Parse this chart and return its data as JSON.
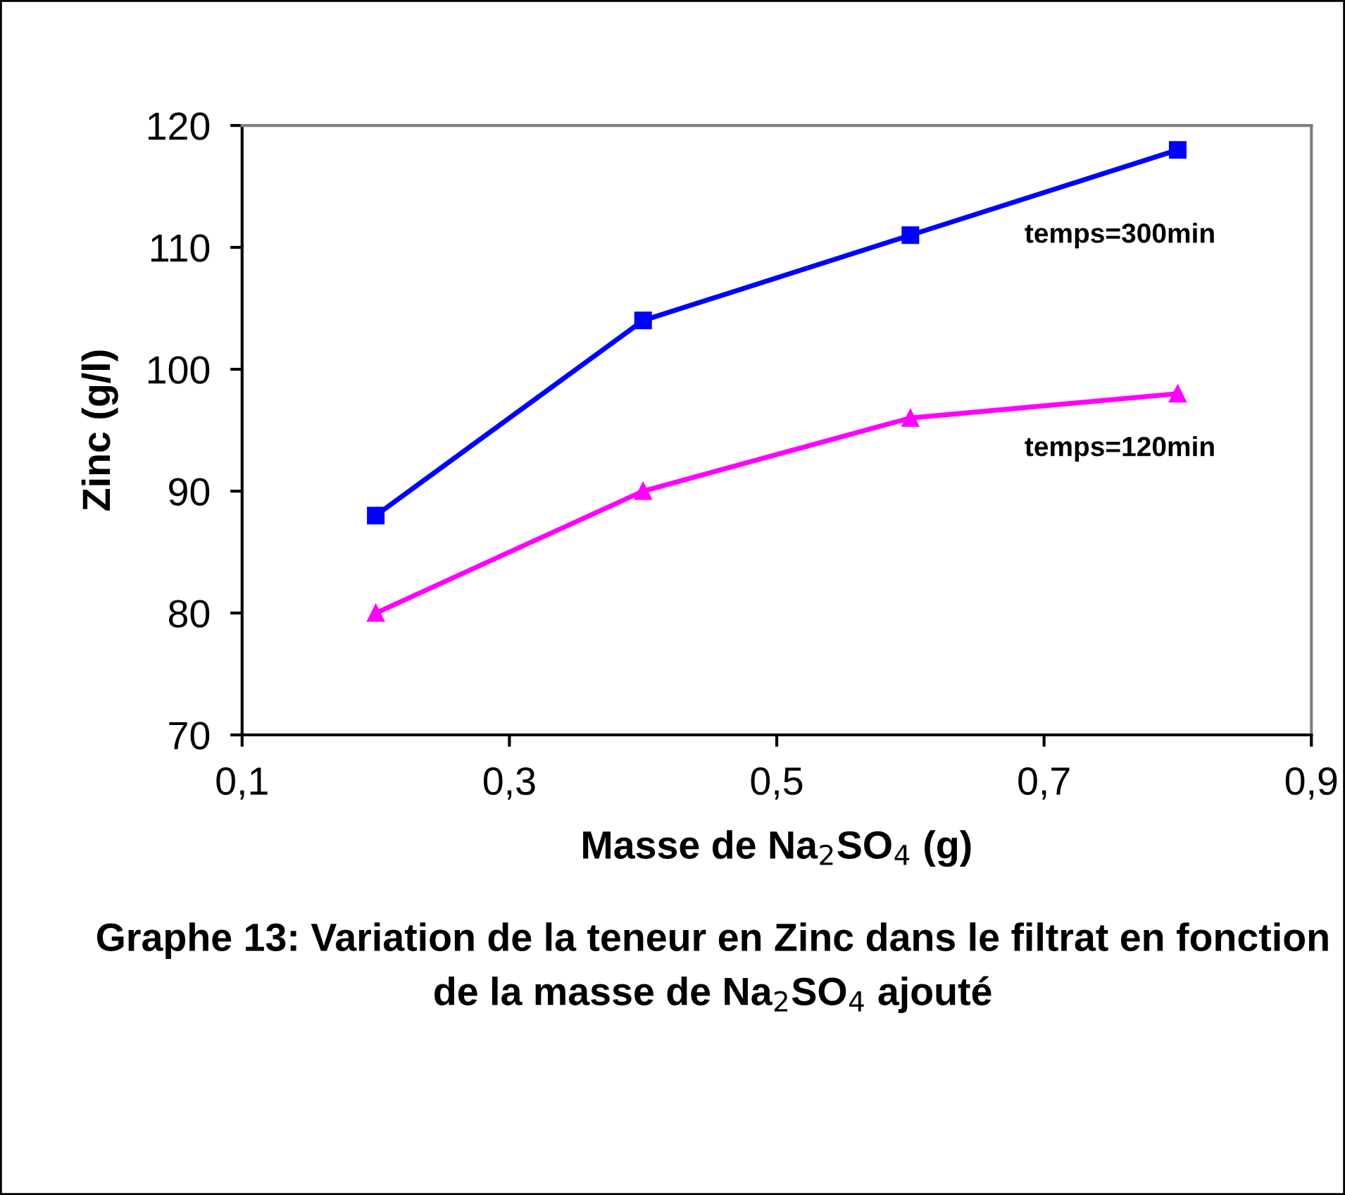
{
  "chart_data": {
    "type": "line",
    "xlabel": "Masse de Na$_{2}$SO$_{4}$ (g)",
    "ylabel": "Zinc (g/l)",
    "annotations": [
      "Graphe 13: Variation de la teneur en Zinc dans le filtrat en fonction de la masse de Na$_{2}$SO$_{4}$ ajouté"
    ],
    "x": [
      0.2,
      0.4,
      0.6,
      0.8
    ],
    "series": [
      {
        "name": "temps=300min",
        "color": "#0000ff",
        "marker": "square",
        "values": [
          88,
          104,
          111,
          118
        ]
      },
      {
        "name": "temps=120min",
        "color": "#ff00ff",
        "marker": "triangle",
        "values": [
          80,
          90,
          96,
          98
        ]
      }
    ],
    "xlim": [
      0.1,
      0.9
    ],
    "xticks": [
      {
        "value": 0.1,
        "label": "0,1"
      },
      {
        "value": 0.3,
        "label": "0,3"
      },
      {
        "value": 0.5,
        "label": "0,5"
      },
      {
        "value": 0.7,
        "label": "0,7"
      },
      {
        "value": 0.9,
        "label": "0,9"
      }
    ],
    "ylim": [
      70,
      120
    ],
    "yticks": [
      70,
      80,
      90,
      100,
      110,
      120
    ],
    "grid": false,
    "legend": false
  }
}
